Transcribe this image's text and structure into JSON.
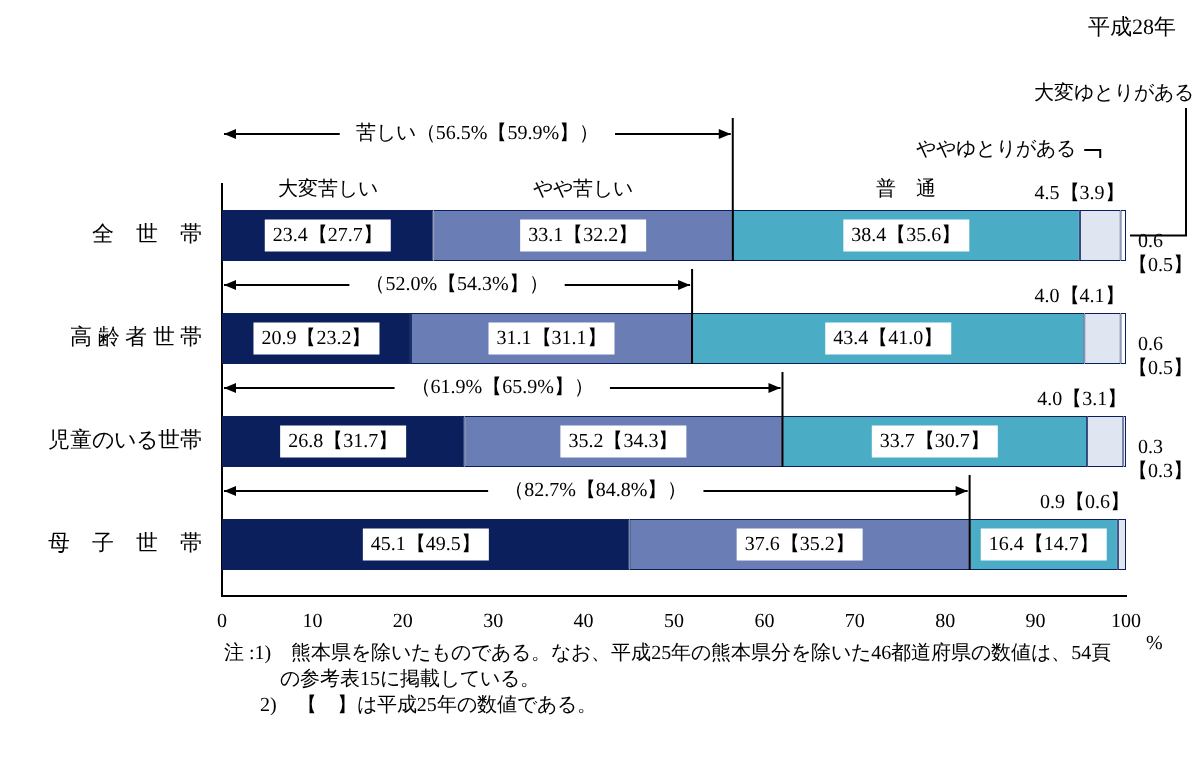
{
  "chart_data": {
    "type": "bar",
    "orientation": "horizontal",
    "stacked": true,
    "subtitle": "平成28年",
    "xlabel": "%",
    "categories": [
      "全　世　帯",
      "高 齢 者 世 帯",
      "児童のいる世帯",
      "母　子　世　帯"
    ],
    "series": [
      {
        "name": "大変苦しい",
        "color": "#0a1f5c",
        "values": [
          23.4,
          20.9,
          26.8,
          45.1
        ],
        "value_labels": [
          "23.4【27.7】",
          "20.9【23.2】",
          "26.8【31.7】",
          "45.1【49.5】"
        ]
      },
      {
        "name": "やや苦しい",
        "color": "#6a7db5",
        "values": [
          33.1,
          31.1,
          35.2,
          37.6
        ],
        "value_labels": [
          "33.1【32.2】",
          "31.1【31.1】",
          "35.2【34.3】",
          "37.6【35.2】"
        ]
      },
      {
        "name": "普　通",
        "color": "#4bacc6",
        "values": [
          38.4,
          43.4,
          33.7,
          16.4
        ],
        "value_labels": [
          "38.4【35.6】",
          "43.4【41.0】",
          "33.7【30.7】",
          "16.4【14.7】"
        ]
      },
      {
        "name": "ややゆとりがある",
        "color": "#dfe6f2",
        "values": [
          4.5,
          4.0,
          4.0,
          0.9
        ],
        "value_labels": [
          "4.5【3.9】",
          "4.0【4.1】",
          "4.0【3.1】",
          "0.9【0.6】"
        ]
      },
      {
        "name": "大変ゆとりがある",
        "color": "#ffffff",
        "values": [
          0.6,
          0.6,
          0.3,
          0
        ],
        "value_labels": [
          "0.6【0.5】",
          "0.6【0.5】",
          "0.3【0.3】",
          null
        ]
      }
    ],
    "xlim": [
      0,
      100
    ],
    "xticks": [
      0,
      10,
      20,
      30,
      40,
      50,
      60,
      70,
      80,
      90,
      100
    ],
    "grid": false,
    "legend": false,
    "annotations": [
      "苦しい（56.5%【59.9%】）",
      "（52.0%【54.3%】）",
      "（61.9%【65.9%】）",
      "（82.7%【84.8%】）",
      "注 :1)　熊本県を除いたものである。なお、平成25年の熊本県分を除いた46都道府県の数値は、54頁の参考表15に掲載している。",
      "2)　【　】は平成25年の数値である。"
    ]
  }
}
